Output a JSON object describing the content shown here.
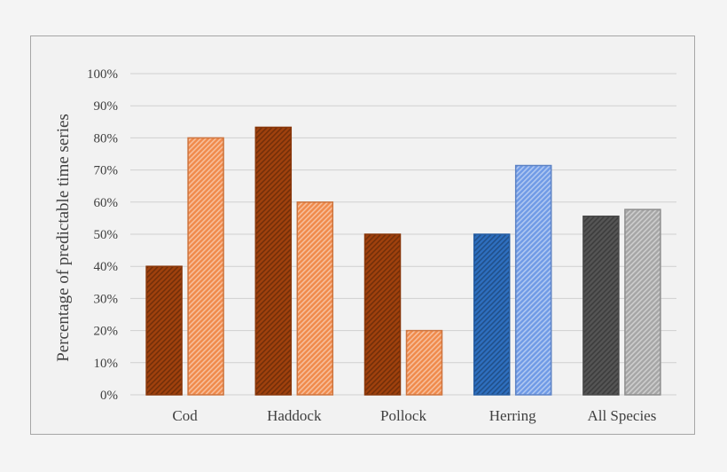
{
  "chart_data": {
    "type": "bar",
    "title": "",
    "xlabel": "",
    "ylabel": "Percentage of predictable time series",
    "ylim": [
      0,
      100
    ],
    "yticks": [
      "0%",
      "10%",
      "20%",
      "30%",
      "40%",
      "50%",
      "60%",
      "70%",
      "80%",
      "90%",
      "100%"
    ],
    "grid": true,
    "legend": "none",
    "categories": [
      "Cod",
      "Haddock",
      "Pollock",
      "Herring",
      "All Species"
    ],
    "series": [
      {
        "values": [
          40,
          83.3,
          50,
          50,
          55.6
        ],
        "colors": [
          "#a0410d",
          "#a0410d",
          "#a0410d",
          "#2e6fbf",
          "#555555"
        ],
        "pattern": "dense-hatch"
      },
      {
        "values": [
          80,
          60,
          20,
          71.4,
          57.7
        ],
        "colors": [
          "#f08a4b",
          "#f08a4b",
          "#f08a4b",
          "#6f9ae6",
          "#a6a6a6"
        ],
        "pattern": "light-hatch"
      }
    ]
  }
}
